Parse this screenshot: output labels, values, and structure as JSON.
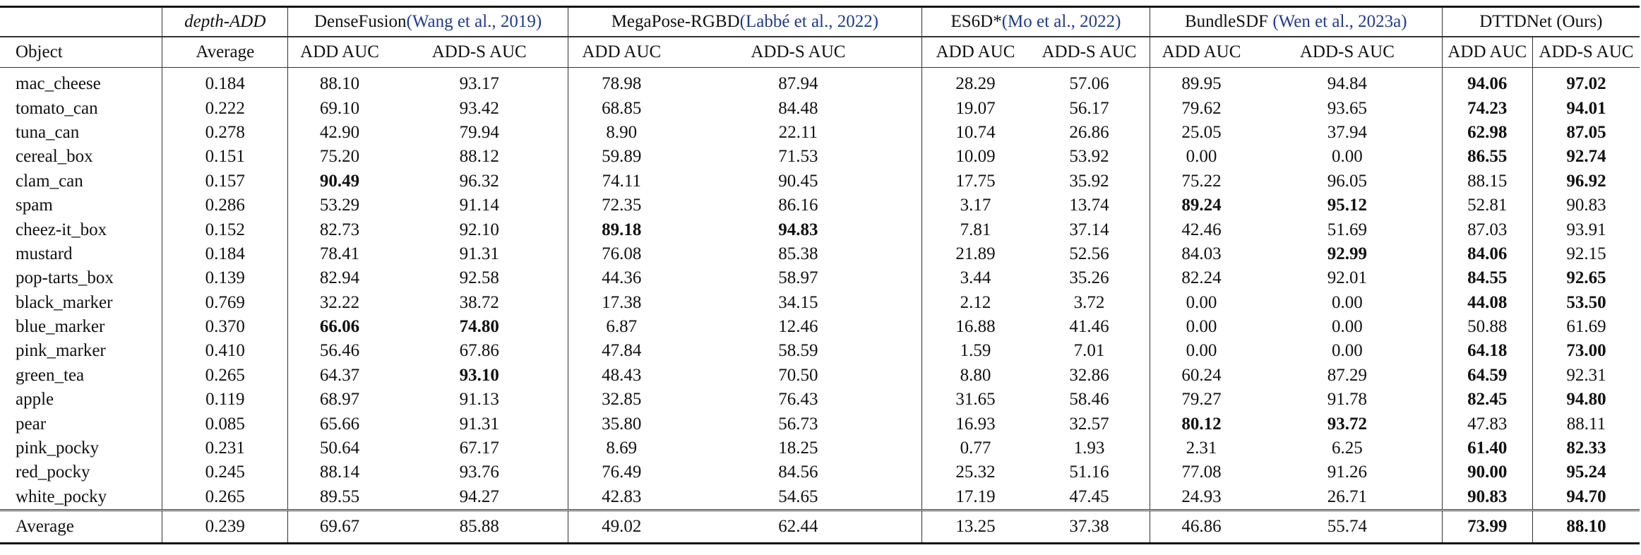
{
  "header_row1": [
    {
      "name": "",
      "span": 1
    },
    {
      "name": "depth-ADD",
      "cite": "",
      "italic": true,
      "span": 1
    },
    {
      "name": "DenseFusion",
      "cite": "(Wang et al., 2019)",
      "span": 2
    },
    {
      "name": "MegaPose-RGBD",
      "cite": "(Labbé et al., 2022)",
      "span": 2
    },
    {
      "name": "ES6D*",
      "cite": "(Mo et al., 2022)",
      "span": 2
    },
    {
      "name": "BundleSDF ",
      "cite": "(Wen et al., 2023a)",
      "span": 2
    },
    {
      "name": "DTTDNet (Ours)",
      "cite": "",
      "span": 2
    }
  ],
  "header_row2": [
    "Object",
    "Average",
    "ADD AUC",
    "ADD-S AUC",
    "ADD AUC",
    "ADD-S AUC",
    "ADD AUC",
    "ADD-S AUC",
    "ADD AUC",
    "ADD-S AUC",
    "ADD AUC",
    "ADD-S AUC"
  ],
  "rows": [
    {
      "object": "mac_cheese",
      "cells": [
        [
          "0.184",
          0
        ],
        [
          "88.10",
          0
        ],
        [
          "93.17",
          0
        ],
        [
          "78.98",
          0
        ],
        [
          "87.94",
          0
        ],
        [
          "28.29",
          0
        ],
        [
          "57.06",
          0
        ],
        [
          "89.95",
          0
        ],
        [
          "94.84",
          0
        ],
        [
          "94.06",
          1
        ],
        [
          "97.02",
          1
        ]
      ]
    },
    {
      "object": "tomato_can",
      "cells": [
        [
          "0.222",
          0
        ],
        [
          "69.10",
          0
        ],
        [
          "93.42",
          0
        ],
        [
          "68.85",
          0
        ],
        [
          "84.48",
          0
        ],
        [
          "19.07",
          0
        ],
        [
          "56.17",
          0
        ],
        [
          "79.62",
          0
        ],
        [
          "93.65",
          0
        ],
        [
          "74.23",
          1
        ],
        [
          "94.01",
          1
        ]
      ]
    },
    {
      "object": "tuna_can",
      "cells": [
        [
          "0.278",
          0
        ],
        [
          "42.90",
          0
        ],
        [
          "79.94",
          0
        ],
        [
          "8.90",
          0
        ],
        [
          "22.11",
          0
        ],
        [
          "10.74",
          0
        ],
        [
          "26.86",
          0
        ],
        [
          "25.05",
          0
        ],
        [
          "37.94",
          0
        ],
        [
          "62.98",
          1
        ],
        [
          "87.05",
          1
        ]
      ]
    },
    {
      "object": "cereal_box",
      "cells": [
        [
          "0.151",
          0
        ],
        [
          "75.20",
          0
        ],
        [
          "88.12",
          0
        ],
        [
          "59.89",
          0
        ],
        [
          "71.53",
          0
        ],
        [
          "10.09",
          0
        ],
        [
          "53.92",
          0
        ],
        [
          "0.00",
          0
        ],
        [
          "0.00",
          0
        ],
        [
          "86.55",
          1
        ],
        [
          "92.74",
          1
        ]
      ]
    },
    {
      "object": "clam_can",
      "cells": [
        [
          "0.157",
          0
        ],
        [
          "90.49",
          1
        ],
        [
          "96.32",
          0
        ],
        [
          "74.11",
          0
        ],
        [
          "90.45",
          0
        ],
        [
          "17.75",
          0
        ],
        [
          "35.92",
          0
        ],
        [
          "75.22",
          0
        ],
        [
          "96.05",
          0
        ],
        [
          "88.15",
          0
        ],
        [
          "96.92",
          1
        ]
      ]
    },
    {
      "object": "spam",
      "cells": [
        [
          "0.286",
          0
        ],
        [
          "53.29",
          0
        ],
        [
          "91.14",
          0
        ],
        [
          "72.35",
          0
        ],
        [
          "86.16",
          0
        ],
        [
          "3.17",
          0
        ],
        [
          "13.74",
          0
        ],
        [
          "89.24",
          1
        ],
        [
          "95.12",
          1
        ],
        [
          "52.81",
          0
        ],
        [
          "90.83",
          0
        ]
      ]
    },
    {
      "object": "cheez-it_box",
      "cells": [
        [
          "0.152",
          0
        ],
        [
          "82.73",
          0
        ],
        [
          "92.10",
          0
        ],
        [
          "89.18",
          1
        ],
        [
          "94.83",
          1
        ],
        [
          "7.81",
          0
        ],
        [
          "37.14",
          0
        ],
        [
          "42.46",
          0
        ],
        [
          "51.69",
          0
        ],
        [
          "87.03",
          0
        ],
        [
          "93.91",
          0
        ]
      ]
    },
    {
      "object": "mustard",
      "cells": [
        [
          "0.184",
          0
        ],
        [
          "78.41",
          0
        ],
        [
          "91.31",
          0
        ],
        [
          "76.08",
          0
        ],
        [
          "85.38",
          0
        ],
        [
          "21.89",
          0
        ],
        [
          "52.56",
          0
        ],
        [
          "84.03",
          0
        ],
        [
          "92.99",
          1
        ],
        [
          "84.06",
          1
        ],
        [
          "92.15",
          0
        ]
      ]
    },
    {
      "object": "pop-tarts_box",
      "cells": [
        [
          "0.139",
          0
        ],
        [
          "82.94",
          0
        ],
        [
          "92.58",
          0
        ],
        [
          "44.36",
          0
        ],
        [
          "58.97",
          0
        ],
        [
          "3.44",
          0
        ],
        [
          "35.26",
          0
        ],
        [
          "82.24",
          0
        ],
        [
          "92.01",
          0
        ],
        [
          "84.55",
          1
        ],
        [
          "92.65",
          1
        ]
      ]
    },
    {
      "object": "black_marker",
      "cells": [
        [
          "0.769",
          0
        ],
        [
          "32.22",
          0
        ],
        [
          "38.72",
          0
        ],
        [
          "17.38",
          0
        ],
        [
          "34.15",
          0
        ],
        [
          "2.12",
          0
        ],
        [
          "3.72",
          0
        ],
        [
          "0.00",
          0
        ],
        [
          "0.00",
          0
        ],
        [
          "44.08",
          1
        ],
        [
          "53.50",
          1
        ]
      ]
    },
    {
      "object": "blue_marker",
      "cells": [
        [
          "0.370",
          0
        ],
        [
          "66.06",
          1
        ],
        [
          "74.80",
          1
        ],
        [
          "6.87",
          0
        ],
        [
          "12.46",
          0
        ],
        [
          "16.88",
          0
        ],
        [
          "41.46",
          0
        ],
        [
          "0.00",
          0
        ],
        [
          "0.00",
          0
        ],
        [
          "50.88",
          0
        ],
        [
          "61.69",
          0
        ]
      ]
    },
    {
      "object": "pink_marker",
      "cells": [
        [
          "0.410",
          0
        ],
        [
          "56.46",
          0
        ],
        [
          "67.86",
          0
        ],
        [
          "47.84",
          0
        ],
        [
          "58.59",
          0
        ],
        [
          "1.59",
          0
        ],
        [
          "7.01",
          0
        ],
        [
          "0.00",
          0
        ],
        [
          "0.00",
          0
        ],
        [
          "64.18",
          1
        ],
        [
          "73.00",
          1
        ]
      ]
    },
    {
      "object": "green_tea",
      "cells": [
        [
          "0.265",
          0
        ],
        [
          "64.37",
          0
        ],
        [
          "93.10",
          1
        ],
        [
          "48.43",
          0
        ],
        [
          "70.50",
          0
        ],
        [
          "8.80",
          0
        ],
        [
          "32.86",
          0
        ],
        [
          "60.24",
          0
        ],
        [
          "87.29",
          0
        ],
        [
          "64.59",
          1
        ],
        [
          "92.31",
          0
        ]
      ]
    },
    {
      "object": "apple",
      "cells": [
        [
          "0.119",
          0
        ],
        [
          "68.97",
          0
        ],
        [
          "91.13",
          0
        ],
        [
          "32.85",
          0
        ],
        [
          "76.43",
          0
        ],
        [
          "31.65",
          0
        ],
        [
          "58.46",
          0
        ],
        [
          "79.27",
          0
        ],
        [
          "91.78",
          0
        ],
        [
          "82.45",
          1
        ],
        [
          "94.80",
          1
        ]
      ]
    },
    {
      "object": "pear",
      "cells": [
        [
          "0.085",
          0
        ],
        [
          "65.66",
          0
        ],
        [
          "91.31",
          0
        ],
        [
          "35.80",
          0
        ],
        [
          "56.73",
          0
        ],
        [
          "16.93",
          0
        ],
        [
          "32.57",
          0
        ],
        [
          "80.12",
          1
        ],
        [
          "93.72",
          1
        ],
        [
          "47.83",
          0
        ],
        [
          "88.11",
          0
        ]
      ]
    },
    {
      "object": "pink_pocky",
      "cells": [
        [
          "0.231",
          0
        ],
        [
          "50.64",
          0
        ],
        [
          "67.17",
          0
        ],
        [
          "8.69",
          0
        ],
        [
          "18.25",
          0
        ],
        [
          "0.77",
          0
        ],
        [
          "1.93",
          0
        ],
        [
          "2.31",
          0
        ],
        [
          "6.25",
          0
        ],
        [
          "61.40",
          1
        ],
        [
          "82.33",
          1
        ]
      ]
    },
    {
      "object": "red_pocky",
      "cells": [
        [
          "0.245",
          0
        ],
        [
          "88.14",
          0
        ],
        [
          "93.76",
          0
        ],
        [
          "76.49",
          0
        ],
        [
          "84.56",
          0
        ],
        [
          "25.32",
          0
        ],
        [
          "51.16",
          0
        ],
        [
          "77.08",
          0
        ],
        [
          "91.26",
          0
        ],
        [
          "90.00",
          1
        ],
        [
          "95.24",
          1
        ]
      ]
    },
    {
      "object": "white_pocky",
      "cells": [
        [
          "0.265",
          0
        ],
        [
          "89.55",
          0
        ],
        [
          "94.27",
          0
        ],
        [
          "42.83",
          0
        ],
        [
          "54.65",
          0
        ],
        [
          "17.19",
          0
        ],
        [
          "47.45",
          0
        ],
        [
          "24.93",
          0
        ],
        [
          "26.71",
          0
        ],
        [
          "90.83",
          1
        ],
        [
          "94.70",
          1
        ]
      ]
    }
  ],
  "average_row": {
    "object": "Average",
    "cells": [
      [
        "0.239",
        0
      ],
      [
        "69.67",
        0
      ],
      [
        "85.88",
        0
      ],
      [
        "49.02",
        0
      ],
      [
        "62.44",
        0
      ],
      [
        "13.25",
        0
      ],
      [
        "37.38",
        0
      ],
      [
        "46.86",
        0
      ],
      [
        "55.74",
        0
      ],
      [
        "73.99",
        1
      ],
      [
        "88.10",
        1
      ]
    ]
  }
}
